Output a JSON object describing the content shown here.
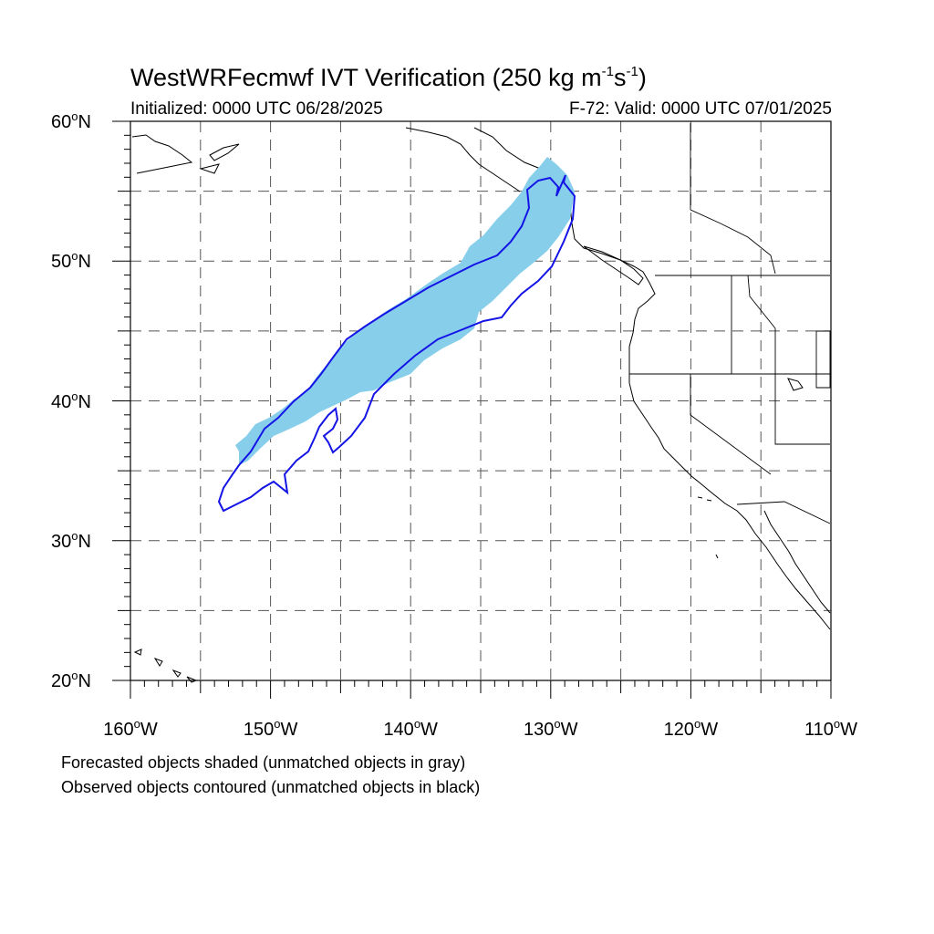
{
  "title": {
    "text": "WestWRFecmwf IVT Verification (250 kg m",
    "sup1": "-1",
    "mid": "s",
    "sup2": "-1",
    "end": ")"
  },
  "initialized": "Initialized: 0000 UTC 06/28/2025",
  "valid": "F-72: Valid: 0000 UTC 07/01/2025",
  "lat_labels": [
    {
      "value": "60",
      "unit": "o",
      "hemi": "N",
      "lat": 60
    },
    {
      "value": "50",
      "unit": "o",
      "hemi": "N",
      "lat": 50
    },
    {
      "value": "40",
      "unit": "o",
      "hemi": "N",
      "lat": 40
    },
    {
      "value": "30",
      "unit": "o",
      "hemi": "N",
      "lat": 30
    },
    {
      "value": "20",
      "unit": "o",
      "hemi": "N",
      "lat": 20
    }
  ],
  "lon_labels": [
    {
      "value": "160",
      "unit": "o",
      "hemi": "W",
      "lon": -160
    },
    {
      "value": "150",
      "unit": "o",
      "hemi": "W",
      "lon": -150
    },
    {
      "value": "140",
      "unit": "o",
      "hemi": "W",
      "lon": -140
    },
    {
      "value": "130",
      "unit": "o",
      "hemi": "W",
      "lon": -130
    },
    {
      "value": "120",
      "unit": "o",
      "hemi": "W",
      "lon": -120
    },
    {
      "value": "110",
      "unit": "o",
      "hemi": "W",
      "lon": -110
    }
  ],
  "notes": {
    "forecast": "Forecasted objects shaded (unmatched objects in gray)",
    "observed": "Observed objects contoured (unmatched objects in black)"
  },
  "map": {
    "lon_range": [
      -160,
      -110
    ],
    "lat_range": [
      20,
      60
    ],
    "grid_interval_deg": 5,
    "colors": {
      "forecast_fill": "#87ceeb",
      "observed_contour": "#1414e6",
      "coast": "#000000",
      "grid": "#555555"
    }
  }
}
